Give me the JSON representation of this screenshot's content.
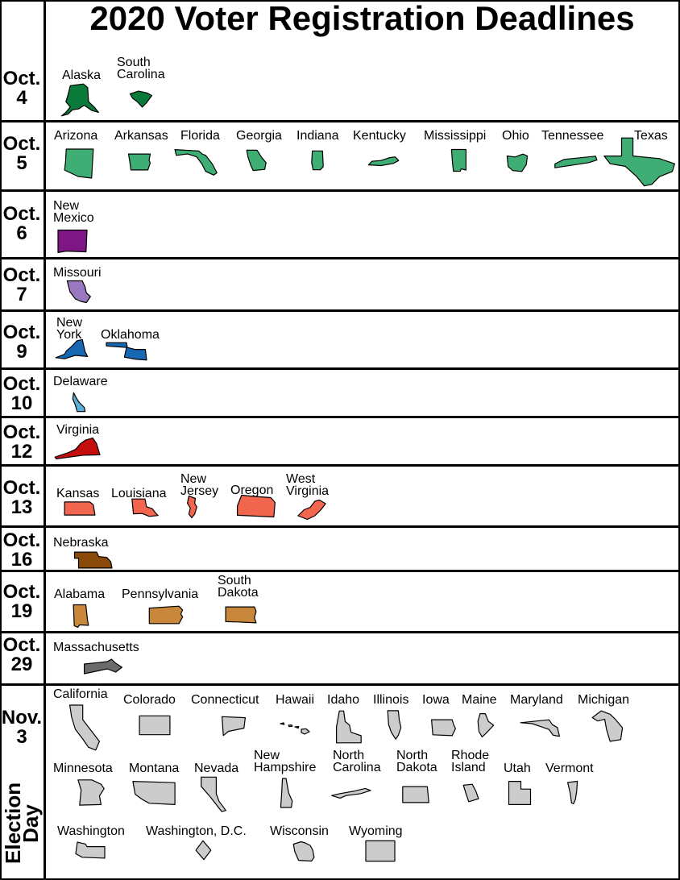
{
  "title": "2020 Voter Registration Deadlines",
  "election_day_label": "Election\nDay",
  "rows": [
    {
      "date": "Oct.\n4",
      "color": "#0a7a3a",
      "states": [
        "Alaska",
        "South\nCarolina"
      ]
    },
    {
      "date": "Oct.\n5",
      "color": "#3fae74",
      "states": [
        "Arizona",
        "Arkansas",
        "Florida",
        "Georgia",
        "Indiana",
        "Kentucky",
        "Mississippi",
        "Ohio",
        "Tennessee",
        "Texas"
      ]
    },
    {
      "date": "Oct.\n6",
      "color": "#7e1685",
      "states": [
        "New\nMexico"
      ]
    },
    {
      "date": "Oct.\n7",
      "color": "#9a78c0",
      "states": [
        "Missouri"
      ]
    },
    {
      "date": "Oct.\n9",
      "color": "#1768b2",
      "states": [
        "New\nYork",
        "Oklahoma"
      ]
    },
    {
      "date": "Oct.\n10",
      "color": "#5aaed8",
      "states": [
        "Delaware"
      ]
    },
    {
      "date": "Oct.\n12",
      "color": "#c40e0e",
      "states": [
        "Virginia"
      ]
    },
    {
      "date": "Oct.\n13",
      "color": "#f26650",
      "states": [
        "Kansas",
        "Louisiana",
        "New\nJersey",
        "Oregon",
        "West\nVirginia"
      ]
    },
    {
      "date": "Oct.\n16",
      "color": "#8a4a0a",
      "states": [
        "Nebraska"
      ]
    },
    {
      "date": "Oct.\n19",
      "color": "#c8873a",
      "states": [
        "Alabama",
        "Pennsylvania",
        "South\nDakota"
      ]
    },
    {
      "date": "Oct.\n29",
      "color": "#6b6b6b",
      "states": [
        "Massachusetts"
      ]
    },
    {
      "date": "Nov.\n3",
      "color": "#cccccc",
      "states": [
        "California",
        "Colorado",
        "Connecticut",
        "Hawaii",
        "Idaho",
        "Illinois",
        "Iowa",
        "Maine",
        "Maryland",
        "Michigan",
        "Minnesota",
        "Montana",
        "Nevada",
        "New\nHampshire",
        "North\nCarolina",
        "North\nDakota",
        "Rhode\nIsland",
        "Utah",
        "Vermont",
        "Washington",
        "Washington, D.C.",
        "Wisconsin",
        "Wyoming"
      ]
    }
  ]
}
